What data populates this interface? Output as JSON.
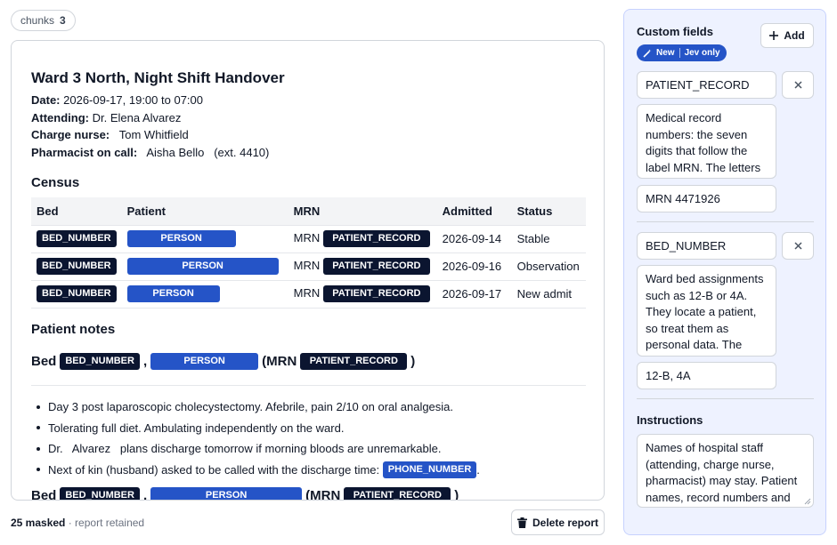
{
  "chunks": {
    "label": "chunks",
    "count": "3"
  },
  "document": {
    "title": "Ward 3 North, Night Shift Handover",
    "meta": [
      {
        "label": "Date:",
        "value": "2026-09-17, 19:00 to 07:00"
      },
      {
        "label": "Attending:",
        "value": "Dr.   Elena Alvarez"
      },
      {
        "label": "Charge nurse:",
        "value": "  Tom Whitfield"
      },
      {
        "label": "Pharmacist on call:",
        "value": "  Aisha Bello   (ext. 4410)"
      }
    ],
    "census_heading": "Census",
    "census_columns": [
      "Bed",
      "Patient",
      "MRN",
      "Admitted",
      "Status"
    ],
    "census_rows": [
      {
        "bed": "BED_NUMBER",
        "patient": "PERSON",
        "mrn_prefix": "MRN",
        "mrn": "PATIENT_RECORD",
        "admitted": "2026-09-14",
        "status": "Stable"
      },
      {
        "bed": "BED_NUMBER",
        "patient": "PERSON",
        "mrn_prefix": "MRN",
        "mrn": "PATIENT_RECORD",
        "admitted": "2026-09-16",
        "status": "Observation"
      },
      {
        "bed": "BED_NUMBER",
        "patient": "PERSON",
        "mrn_prefix": "MRN",
        "mrn": "PATIENT_RECORD",
        "admitted": "2026-09-17",
        "status": "New admit"
      }
    ],
    "notes_heading": "Patient notes",
    "patient_block": {
      "bed_word": "Bed",
      "bed": "BED_NUMBER",
      "comma": ",",
      "patient": "PERSON",
      "mrn_open": "(MRN",
      "mrn": "PATIENT_RECORD",
      "close": ")"
    },
    "notes": [
      {
        "text": "Day 3 post laparoscopic cholecystectomy. Afebrile, pain 2/10 on oral analgesia."
      },
      {
        "text": "Tolerating full diet. Ambulating independently on the ward."
      },
      {
        "text": "Dr.   Alvarez   plans discharge tomorrow if morning bloods are unremarkable."
      },
      {
        "text": "Next of kin (husband) asked to be called with the discharge time:",
        "tag": "PHONE_NUMBER",
        "suffix": "."
      }
    ],
    "patient_block_2": {
      "bed_word": "Bed",
      "bed": "BED_NUMBER",
      "comma": ",",
      "patient": "PERSON",
      "mrn_open": "(MRN",
      "mrn": "PATIENT_RECORD",
      "close": ")"
    }
  },
  "footer": {
    "masked": "25 masked",
    "retained": " · report retained",
    "delete_label": "Delete report"
  },
  "panel": {
    "title": "Custom fields",
    "add_label": "Add",
    "badge_new": "New",
    "badge_scope": "Jev only",
    "fields": [
      {
        "name": "PATIENT_RECORD",
        "description": "Medical record numbers: the seven digits that follow the label MRN. The letters MRN stay visible.",
        "example": "MRN 4471926"
      },
      {
        "name": "BED_NUMBER",
        "description": "Ward bed assignments such as 12-B or 4A. They locate a patient, so treat them as personal data. The",
        "example": "12-B, 4A"
      }
    ],
    "instructions_title": "Instructions",
    "instructions": "Names of hospital staff (attending, charge nurse, pharmacist) may stay. Patient names, record numbers and"
  },
  "colors": {
    "tag_dark": "#0b1530",
    "tag_blue": "#2554c7",
    "panel_bg": "#eef2ff"
  }
}
